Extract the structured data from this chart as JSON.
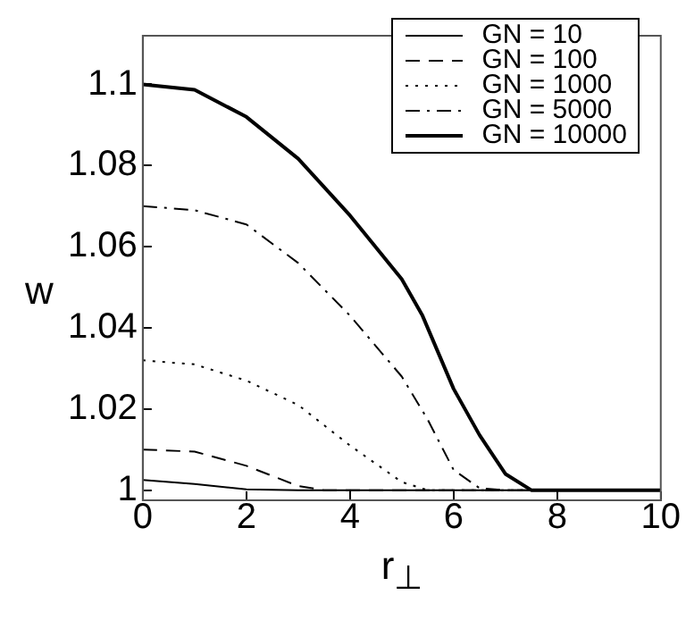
{
  "chart_data": {
    "type": "line",
    "xlabel": "r$_{⊥}$",
    "ylabel": "w",
    "xlim": [
      0,
      10
    ],
    "xticks": [
      0,
      2,
      4,
      6,
      8,
      10
    ],
    "ylim": [
      0.9975,
      1.112
    ],
    "yticks": [
      {
        "value": 1,
        "label": "1"
      },
      1.02,
      1.04,
      1.06,
      1.08,
      1.1
    ],
    "grid": false,
    "legend": "top right",
    "marker": "none",
    "series": [
      {
        "name": "GN = 10",
        "color": "#000000",
        "line_style": "solid",
        "x": [
          0,
          1,
          2,
          3,
          10
        ],
        "values": [
          1.0025,
          1.0015,
          1.0002,
          1,
          1
        ]
      },
      {
        "name": "GN = 100",
        "color": "#000000",
        "line_style": "dashed",
        "x": [
          0,
          1,
          2,
          3,
          3.5,
          10
        ],
        "values": [
          1.01,
          1.0095,
          1.006,
          1.001,
          1,
          1
        ]
      },
      {
        "name": "GN = 1000",
        "color": "#000000",
        "line_style": "dotted",
        "x": [
          0,
          1,
          2,
          3,
          4,
          5,
          5.5,
          10
        ],
        "values": [
          1.032,
          1.031,
          1.027,
          1.021,
          1.011,
          1.002,
          1,
          1
        ]
      },
      {
        "name": "GN = 5000",
        "color": "#000000",
        "line_style": "dashdot",
        "x": [
          0,
          1,
          2,
          3,
          4,
          5,
          5.5,
          6,
          6.5,
          7,
          10
        ],
        "values": [
          1.07,
          1.069,
          1.0655,
          1.056,
          1.043,
          1.028,
          1.0174,
          1.005,
          1.0005,
          1,
          1
        ]
      },
      {
        "name": "GN = 10000",
        "color": "#000000",
        "line_style": "solid",
        "x": [
          0,
          1,
          2,
          3,
          4,
          5,
          5.4,
          6,
          6.5,
          7,
          7.5,
          10
        ],
        "values": [
          1.1,
          1.0987,
          1.092,
          1.0817,
          1.0677,
          1.052,
          1.043,
          1.025,
          1.0136,
          1.004,
          1,
          1
        ]
      }
    ]
  }
}
